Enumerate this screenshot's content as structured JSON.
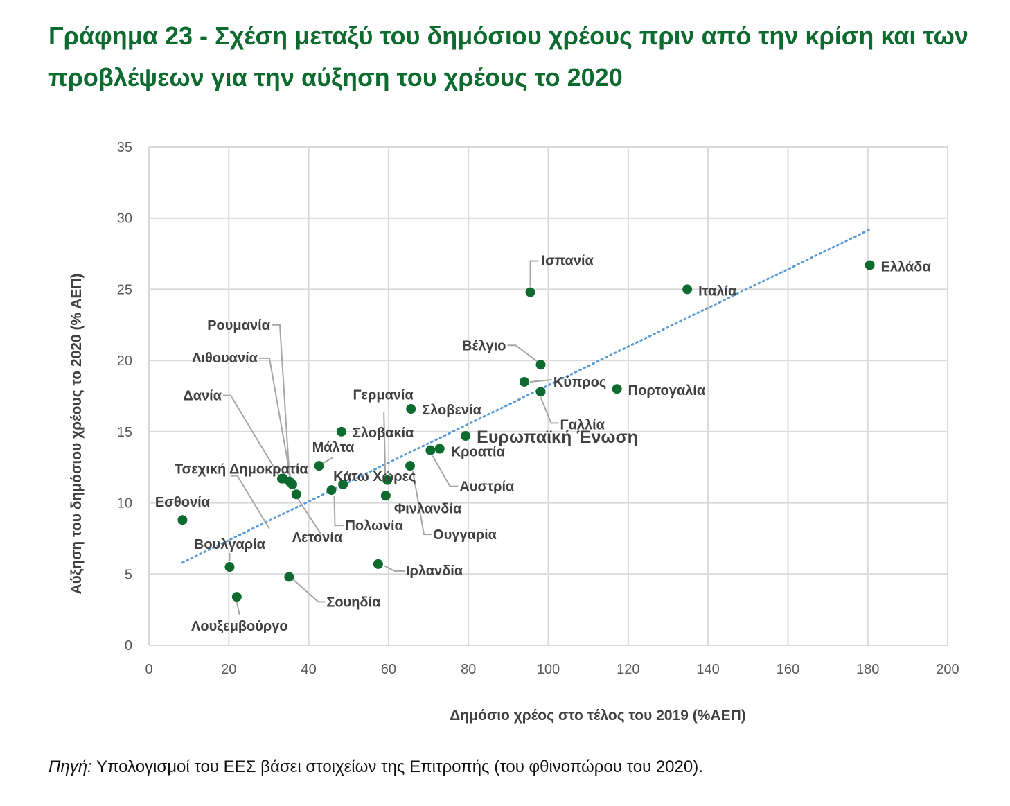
{
  "title": "Γράφημα 23 - Σχέση μεταξύ του δημόσιου χρέους πριν από την κρίση και των προβλέψεων για την αύξηση του χρέους το 2020",
  "source": {
    "prefix": "Πηγή:",
    "text": " Υπολογισμοί του ΕΕΣ βάσει στοιχείων της Επιτροπής (του φθινοπώρου του 2020)."
  },
  "colors": {
    "point": "#0e6b2f",
    "trendline": "#5b9bd5",
    "grid": "#d9d9d9",
    "leader": "#a6a6a6",
    "title": "#0e6b2f"
  },
  "chart_data": {
    "type": "scatter",
    "title": "",
    "xlabel": "Δημόσιο χρέος στο τέλος του 2019 (%ΑΕΠ)",
    "ylabel": "Αύξηση του δημόσιου χρέους το 2020 (% ΑΕΠ)",
    "xlim": [
      0,
      200
    ],
    "ylim": [
      0,
      35
    ],
    "xticks": [
      0,
      20,
      40,
      60,
      80,
      100,
      120,
      140,
      160,
      180,
      200
    ],
    "yticks": [
      0,
      5,
      10,
      15,
      20,
      25,
      30,
      35
    ],
    "grid": true,
    "trendline": {
      "type": "linear",
      "x": [
        8.4,
        180.5
      ],
      "y": [
        5.8,
        29.2
      ]
    },
    "points": [
      {
        "label": "Ελλάδα",
        "x": 180.5,
        "y": 26.7
      },
      {
        "label": "Ιταλία",
        "x": 134.8,
        "y": 25.0
      },
      {
        "label": "Ισπανία",
        "x": 95.5,
        "y": 24.8
      },
      {
        "label": "Βέλγιο",
        "x": 98.1,
        "y": 19.7
      },
      {
        "label": "Κύπρος",
        "x": 94.0,
        "y": 18.5
      },
      {
        "label": "Γαλλία",
        "x": 98.1,
        "y": 17.8
      },
      {
        "label": "Πορτογαλία",
        "x": 117.2,
        "y": 18.0
      },
      {
        "label": "Σλοβενία",
        "x": 65.6,
        "y": 16.6
      },
      {
        "label": "Σλοβακία",
        "x": 48.2,
        "y": 15.0
      },
      {
        "label": "Ευρωπαϊκή Ένωση",
        "x": 79.3,
        "y": 14.7
      },
      {
        "label": "Κροατία",
        "x": 72.8,
        "y": 13.8
      },
      {
        "label": "Αυστρία",
        "x": 70.5,
        "y": 13.7
      },
      {
        "label": "Μάλτα",
        "x": 42.6,
        "y": 12.6
      },
      {
        "label": "Ουγγαρία",
        "x": 65.4,
        "y": 12.6
      },
      {
        "label": "Γερμανία",
        "x": 59.7,
        "y": 11.6
      },
      {
        "label": "Κάτω Χώρες",
        "x": 48.6,
        "y": 11.3
      },
      {
        "label": "Φινλανδία",
        "x": 59.3,
        "y": 10.5
      },
      {
        "label": "Πολωνία",
        "x": 45.7,
        "y": 10.9
      },
      {
        "label": "Τσεχική Δημοκρατία",
        "x": 33.6,
        "y": 11.7
      },
      {
        "label": "Ρουμανία",
        "x": 35.2,
        "y": 11.5
      },
      {
        "label": "Λιθουανία",
        "x": 35.9,
        "y": 11.3
      },
      {
        "label": "Δανία",
        "x": 33.3,
        "y": 11.7
      },
      {
        "label": "Λετονία",
        "x": 36.9,
        "y": 10.6
      },
      {
        "label": "Βουλγαρία",
        "x": 20.2,
        "y": 5.5
      },
      {
        "label": "Εσθονία",
        "x": 8.4,
        "y": 8.8
      },
      {
        "label": "Ιρλανδία",
        "x": 57.4,
        "y": 5.7
      },
      {
        "label": "Σουηδία",
        "x": 35.1,
        "y": 4.8
      },
      {
        "label": "Λουξεμβούργο",
        "x": 22.0,
        "y": 3.4
      }
    ]
  }
}
